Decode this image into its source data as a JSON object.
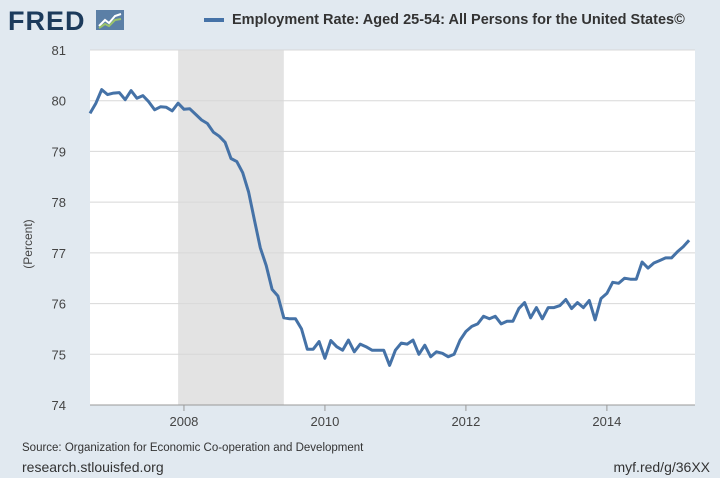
{
  "header": {
    "logo_text": "FRED",
    "logo_icon": "line-chart-icon"
  },
  "colors": {
    "series": "#4572a7",
    "recession": "#e3e3e3",
    "background": "#e1e9f0",
    "plot_background": "#ffffff"
  },
  "chart_data": {
    "type": "line",
    "title": "",
    "ylabel": "(Percent)",
    "xlabel": "",
    "ylim": [
      74,
      81
    ],
    "xlim": [
      2006.667,
      2015.25
    ],
    "y_ticks": [
      74,
      75,
      76,
      77,
      78,
      79,
      80,
      81
    ],
    "x_ticks": [
      2008,
      2010,
      2012,
      2014
    ],
    "x_tick_labels": [
      "2008",
      "2010",
      "2012",
      "2014"
    ],
    "grid": true,
    "legend_position": "top",
    "recession": [
      {
        "start": 2007.917,
        "end": 2009.417
      }
    ],
    "series": [
      {
        "name": "Employment Rate: Aged 25-54: All Persons for the United States©",
        "x": [
          2006.667,
          2006.75,
          2006.833,
          2006.917,
          2007.0,
          2007.083,
          2007.167,
          2007.25,
          2007.333,
          2007.417,
          2007.5,
          2007.583,
          2007.667,
          2007.75,
          2007.833,
          2007.917,
          2008.0,
          2008.083,
          2008.167,
          2008.25,
          2008.333,
          2008.417,
          2008.5,
          2008.583,
          2008.667,
          2008.75,
          2008.833,
          2008.917,
          2009.0,
          2009.083,
          2009.167,
          2009.25,
          2009.333,
          2009.417,
          2009.5,
          2009.583,
          2009.667,
          2009.75,
          2009.833,
          2009.917,
          2010.0,
          2010.083,
          2010.167,
          2010.25,
          2010.333,
          2010.417,
          2010.5,
          2010.583,
          2010.667,
          2010.75,
          2010.833,
          2010.917,
          2011.0,
          2011.083,
          2011.167,
          2011.25,
          2011.333,
          2011.417,
          2011.5,
          2011.583,
          2011.667,
          2011.75,
          2011.833,
          2011.917,
          2012.0,
          2012.083,
          2012.167,
          2012.25,
          2012.333,
          2012.417,
          2012.5,
          2012.583,
          2012.667,
          2012.75,
          2012.833,
          2012.917,
          2013.0,
          2013.083,
          2013.167,
          2013.25,
          2013.333,
          2013.417,
          2013.5,
          2013.583,
          2013.667,
          2013.75,
          2013.833,
          2013.917,
          2014.0,
          2014.083,
          2014.167,
          2014.25,
          2014.333,
          2014.417,
          2014.5,
          2014.583,
          2014.667,
          2014.75,
          2014.833,
          2014.917,
          2015.0,
          2015.083,
          2015.167
        ],
        "values": [
          79.75,
          79.95,
          80.22,
          80.12,
          80.15,
          80.16,
          80.02,
          80.2,
          80.05,
          80.1,
          79.98,
          79.82,
          79.88,
          79.87,
          79.8,
          79.95,
          79.83,
          79.84,
          79.73,
          79.62,
          79.55,
          79.38,
          79.3,
          79.18,
          78.86,
          78.8,
          78.58,
          78.2,
          77.65,
          77.1,
          76.75,
          76.28,
          76.15,
          75.72,
          75.7,
          75.7,
          75.5,
          75.1,
          75.1,
          75.25,
          74.92,
          75.27,
          75.15,
          75.08,
          75.28,
          75.05,
          75.2,
          75.15,
          75.08,
          75.08,
          75.08,
          74.78,
          75.08,
          75.22,
          75.2,
          75.28,
          75.0,
          75.18,
          74.95,
          75.05,
          75.02,
          74.95,
          75.0,
          75.28,
          75.45,
          75.55,
          75.6,
          75.75,
          75.7,
          75.75,
          75.6,
          75.65,
          75.65,
          75.9,
          76.02,
          75.72,
          75.92,
          75.7,
          75.92,
          75.92,
          75.96,
          76.08,
          75.9,
          76.02,
          75.92,
          76.06,
          75.68,
          76.1,
          76.2,
          76.42,
          76.4,
          76.5,
          76.48,
          76.48,
          76.82,
          76.7,
          76.8,
          76.85,
          76.9,
          76.9,
          77.02,
          77.12,
          77.25
        ]
      }
    ]
  },
  "footer": {
    "source": "Source: Organization for Economic Co-operation and Development",
    "site": "research.stlouisfed.org",
    "short_url": "myf.red/g/36XX"
  }
}
